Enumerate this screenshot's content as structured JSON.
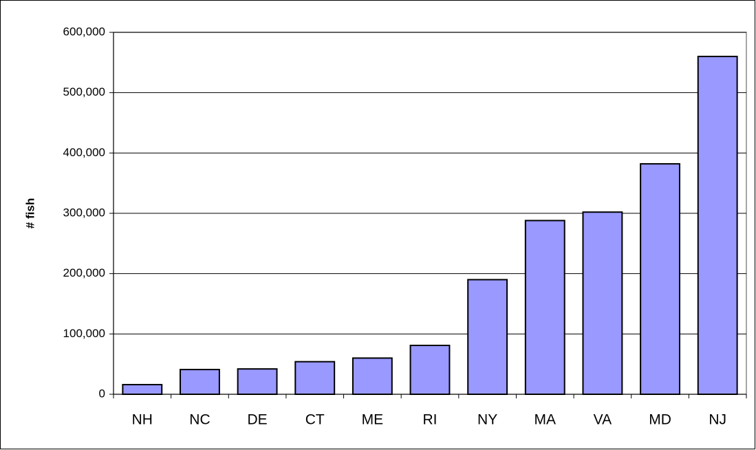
{
  "chart_data": {
    "type": "bar",
    "y_label": "# fish",
    "categories": [
      "NH",
      "NC",
      "DE",
      "CT",
      "ME",
      "RI",
      "NY",
      "MA",
      "VA",
      "MD",
      "NJ"
    ],
    "values": [
      16000,
      41000,
      42000,
      54000,
      60000,
      81000,
      190000,
      288000,
      302000,
      382000,
      560000
    ],
    "color": "#9999ff",
    "ylim": [
      0,
      600000
    ],
    "yticks": [
      0,
      {
        "value": 100000,
        "label": "100,000"
      },
      {
        "value": 200000,
        "label": "200,000"
      },
      {
        "value": 300000,
        "label": "300,000"
      },
      {
        "value": 400000,
        "label": "400,000"
      },
      {
        "value": 500000,
        "label": "500,000"
      },
      {
        "value": 600000,
        "label": "600,000"
      }
    ],
    "grid": true
  }
}
